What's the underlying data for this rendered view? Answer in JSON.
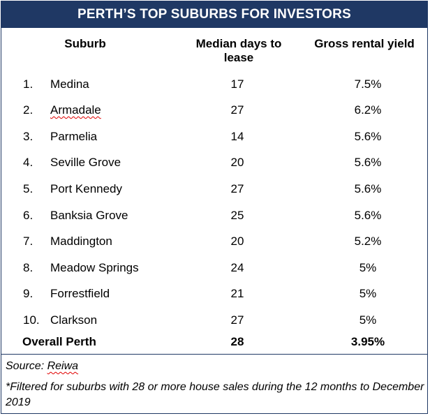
{
  "title": "PERTH’S TOP SUBURBS  FOR INVESTORS",
  "columns": {
    "suburb": "Suburb",
    "days": "Median days to lease",
    "yield": "Gross rental yield"
  },
  "rows": [
    {
      "rank": "1.",
      "suburb": "Medina",
      "days": "17",
      "yield": "7.5%"
    },
    {
      "rank": "2.",
      "suburb": "Armadale",
      "days": "27",
      "yield": "6.2%"
    },
    {
      "rank": "3.",
      "suburb": "Parmelia",
      "days": "14",
      "yield": "5.6%"
    },
    {
      "rank": "4.",
      "suburb": "Seville Grove",
      "days": "20",
      "yield": "5.6%"
    },
    {
      "rank": "5.",
      "suburb": "Port Kennedy",
      "days": "27",
      "yield": "5.6%"
    },
    {
      "rank": "6.",
      "suburb": "Banksia Grove",
      "days": "25",
      "yield": "5.6%"
    },
    {
      "rank": "7.",
      "suburb": "Maddington",
      "days": "20",
      "yield": "5.2%"
    },
    {
      "rank": "8.",
      "suburb": "Meadow Springs",
      "days": "24",
      "yield": "5%"
    },
    {
      "rank": "9.",
      "suburb": "Forrestfield",
      "days": "21",
      "yield": "5%"
    },
    {
      "rank": "10.",
      "suburb": "Clarkson",
      "days": "27",
      "yield": "5%"
    }
  ],
  "overall": {
    "label": "Overall Perth",
    "days": "28",
    "yield": "3.95%"
  },
  "source": {
    "prefix": "Source: ",
    "name": "Reiwa"
  },
  "footnote": "*Filtered for suburbs with 28 or more house sales during the 12 months to December 2019",
  "colors": {
    "header_bg": "#1f3864",
    "header_text": "#ffffff",
    "spellcheck": "#e00000"
  }
}
